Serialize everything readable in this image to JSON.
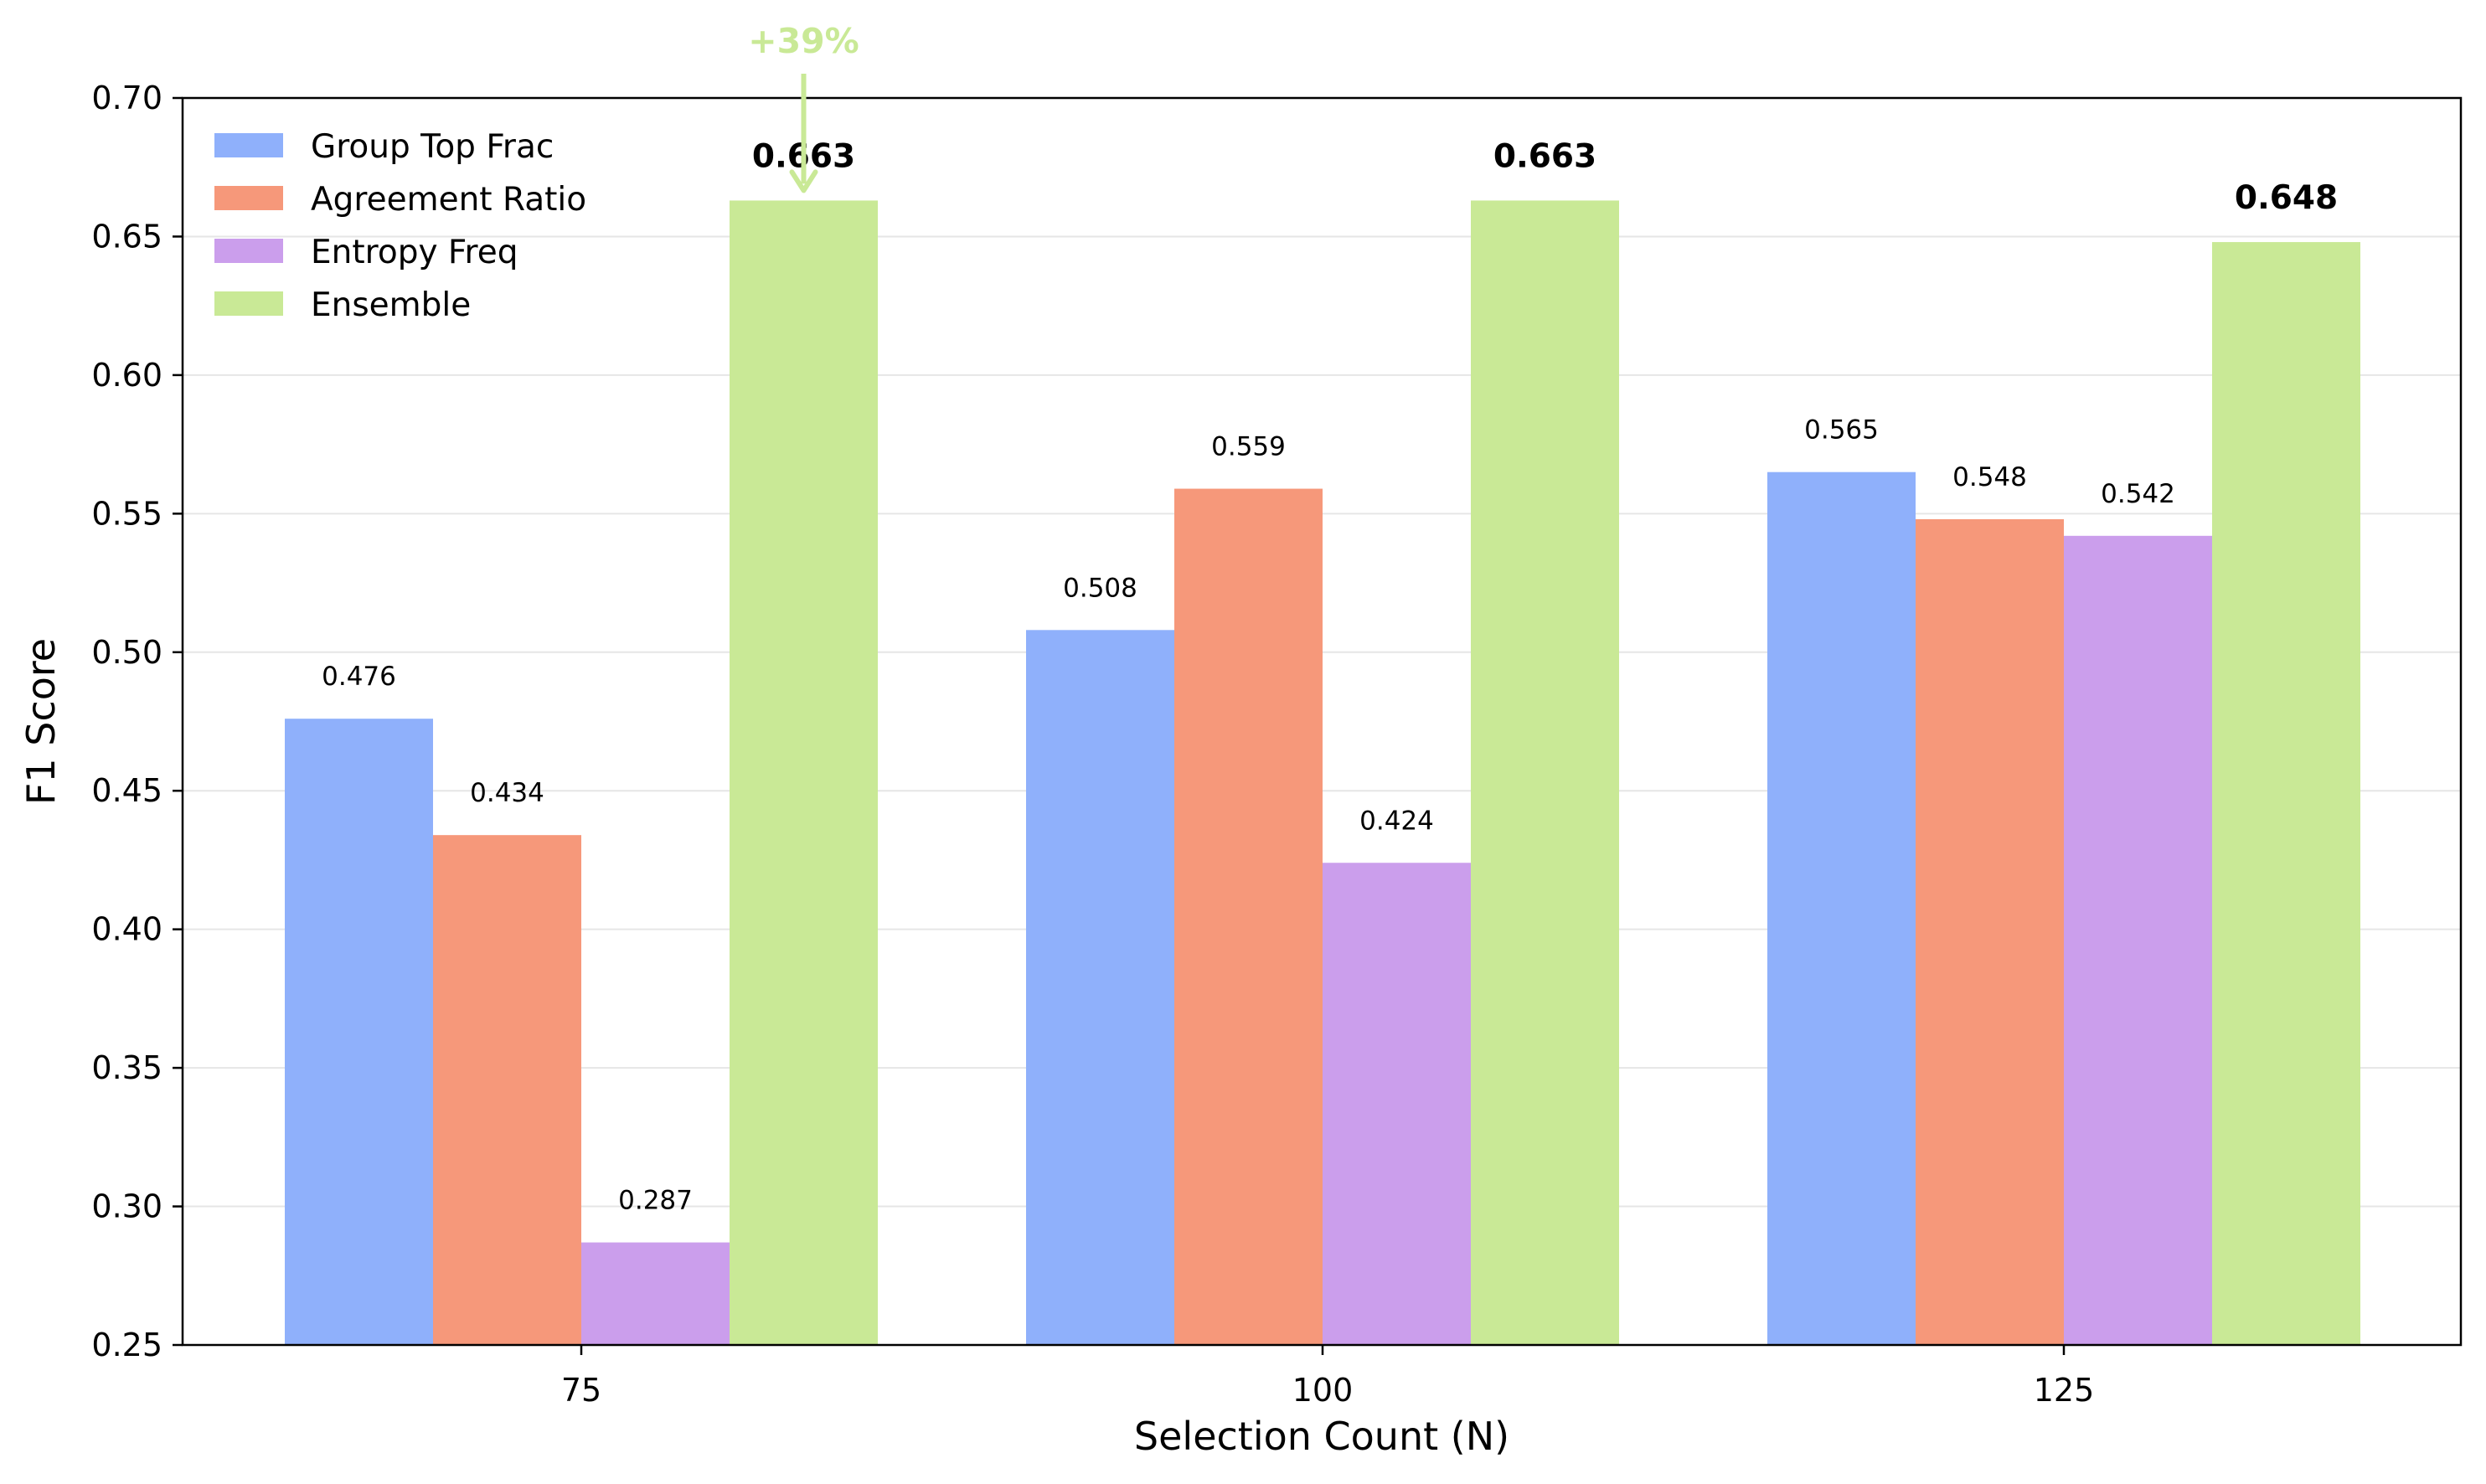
{
  "chart_data": {
    "type": "bar",
    "categories": [
      "75",
      "100",
      "125"
    ],
    "series": [
      {
        "name": "Group Top Frac",
        "values": [
          0.476,
          0.508,
          0.565
        ],
        "color": "#8fb0fb",
        "value_labels": [
          "0.476",
          "0.508",
          "0.565"
        ]
      },
      {
        "name": "Agreement Ratio",
        "values": [
          0.434,
          0.559,
          0.548
        ],
        "color": "#f6987a",
        "value_labels": [
          "0.434",
          "0.559",
          "0.548"
        ]
      },
      {
        "name": "Entropy Freq",
        "values": [
          0.287,
          0.424,
          0.542
        ],
        "color": "#cb9eec",
        "value_labels": [
          "0.287",
          "0.424",
          "0.542"
        ]
      },
      {
        "name": "Ensemble",
        "values": [
          0.663,
          0.663,
          0.648
        ],
        "color": "#c9e996",
        "value_labels": [
          "0.663",
          "0.663",
          "0.648"
        ]
      }
    ],
    "xlabel": "Selection Count (N)",
    "ylabel": "F1 Score",
    "ylim": [
      0.25,
      0.7
    ],
    "yticks": [
      0.25,
      0.3,
      0.35,
      0.4,
      0.45,
      0.5,
      0.55,
      0.6,
      0.65,
      0.7
    ],
    "ytick_labels": [
      "0.25",
      "0.30",
      "0.35",
      "0.40",
      "0.45",
      "0.50",
      "0.55",
      "0.60",
      "0.65",
      "0.70"
    ],
    "grid": "y",
    "legend_position": "top-left",
    "annotation": {
      "text": "+39%",
      "color": "#c9e996",
      "category": "75",
      "series": "Ensemble"
    }
  }
}
